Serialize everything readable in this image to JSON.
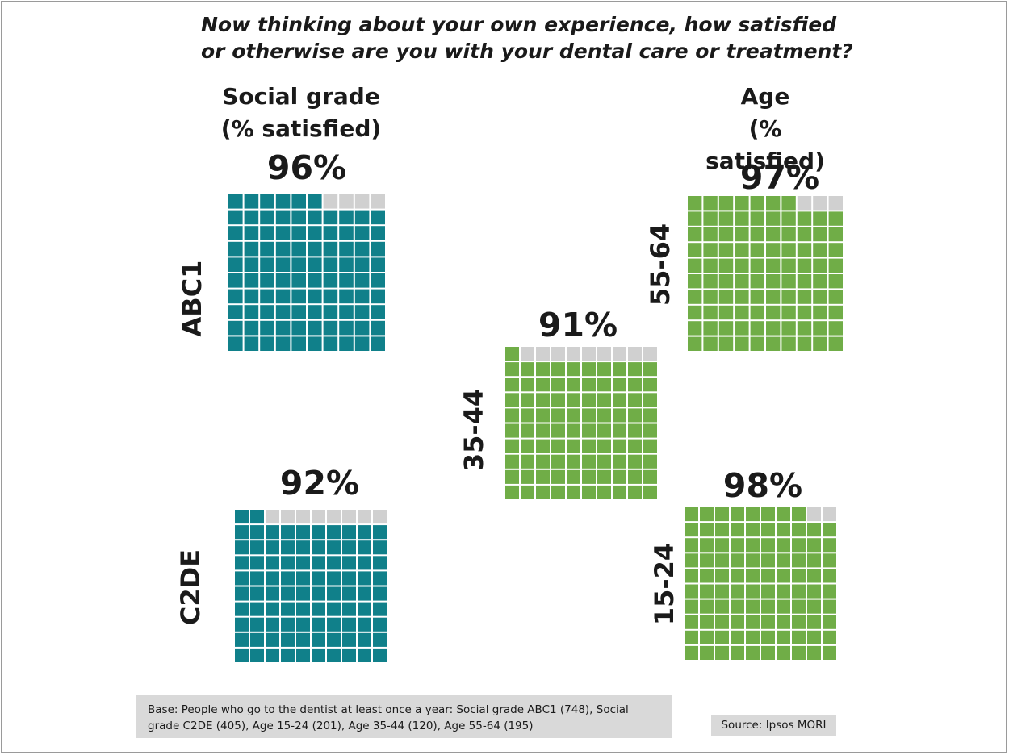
{
  "title": "Now thinking about your own experience, how satisfied or otherwise are you with your dental care or treatment?",
  "headings": {
    "social_grade": [
      "Social grade",
      "(% satisfied)"
    ],
    "age": [
      "Age",
      "(% satisfied)"
    ]
  },
  "colors": {
    "social_grade": "#10808a",
    "age": "#70ad47",
    "unfilled": "#d0d0d0"
  },
  "chart_data": {
    "type": "waffle",
    "total_cells": 100,
    "groups": [
      {
        "group": "Social grade",
        "category": "ABC1",
        "value": 96,
        "label": "96%"
      },
      {
        "group": "Social grade",
        "category": "C2DE",
        "value": 92,
        "label": "92%"
      },
      {
        "group": "Age",
        "category": "15-24",
        "value": 98,
        "label": "98%"
      },
      {
        "group": "Age",
        "category": "35-44",
        "value": 91,
        "label": "91%"
      },
      {
        "group": "Age",
        "category": "55-64",
        "value": 97,
        "label": "97%"
      }
    ]
  },
  "footnote": {
    "base": "Base: People who go to the dentist at least once a year: Social grade ABC1 (748), Social grade C2DE (405), Age 15-24 (201), Age 35-44 (120), Age 55-64 (195)",
    "source": "Source: Ipsos MORI"
  }
}
